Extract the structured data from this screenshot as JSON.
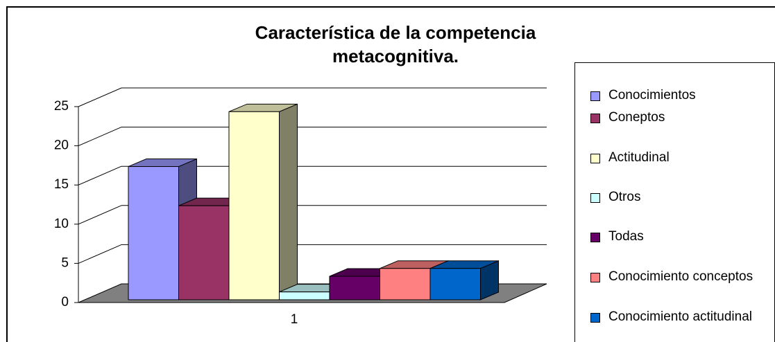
{
  "chart_data": {
    "type": "bar3d",
    "title": "Característica de la competencia metacognitiva.",
    "categories": [
      "1"
    ],
    "series": [
      {
        "name": "Conocimientos",
        "color": "#9999ff",
        "values": [
          17
        ]
      },
      {
        "name": "Coneptos",
        "color": "#993366",
        "values": [
          12
        ]
      },
      {
        "name": "Actitudinal",
        "color": "#ffffcc",
        "values": [
          24
        ]
      },
      {
        "name": "Otros",
        "color": "#ccffff",
        "values": [
          1
        ]
      },
      {
        "name": "Todas",
        "color": "#660066",
        "values": [
          3
        ]
      },
      {
        "name": "Conocimiento conceptos",
        "color": "#ff8080",
        "values": [
          4
        ]
      },
      {
        "name": "Conocimiento actitudinal",
        "color": "#0066cc",
        "values": [
          4
        ]
      }
    ],
    "ylim": [
      0,
      25
    ],
    "yticks": [
      0,
      5,
      10,
      15,
      20,
      25
    ],
    "grid": true,
    "legend": "right"
  }
}
